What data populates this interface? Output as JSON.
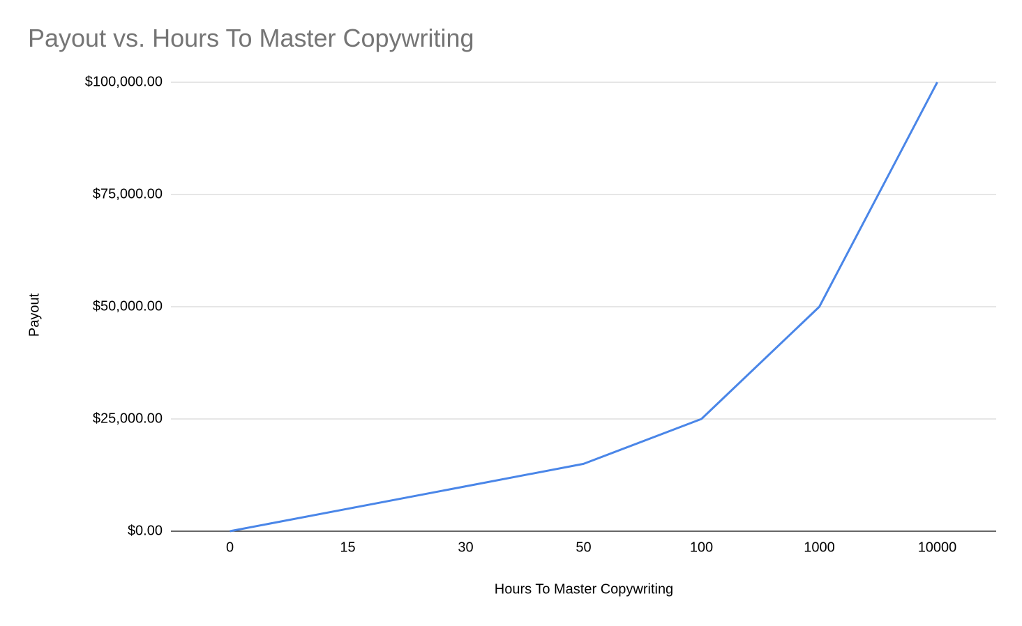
{
  "chart_data": {
    "type": "line",
    "title": "Payout  vs. Hours To Master Copywriting",
    "x_label": "Hours To Master Copywriting",
    "y_label": "Payout",
    "categories": [
      "0",
      "15",
      "30",
      "50",
      "100",
      "1000",
      "10000"
    ],
    "series": [
      {
        "name": "Payout",
        "color": "#4a86e8",
        "values": [
          0,
          5000,
          10000,
          15000,
          25000,
          50000,
          100000
        ]
      }
    ],
    "ylim": [
      0,
      100000
    ],
    "yticks": [
      {
        "value": 0,
        "label": "$0.00"
      },
      {
        "value": 25000,
        "label": "$25,000.00"
      },
      {
        "value": 50000,
        "label": "$50,000.00"
      },
      {
        "value": 75000,
        "label": "$75,000.00"
      },
      {
        "value": 100000,
        "label": "$100,000.00"
      }
    ],
    "grid": true
  }
}
